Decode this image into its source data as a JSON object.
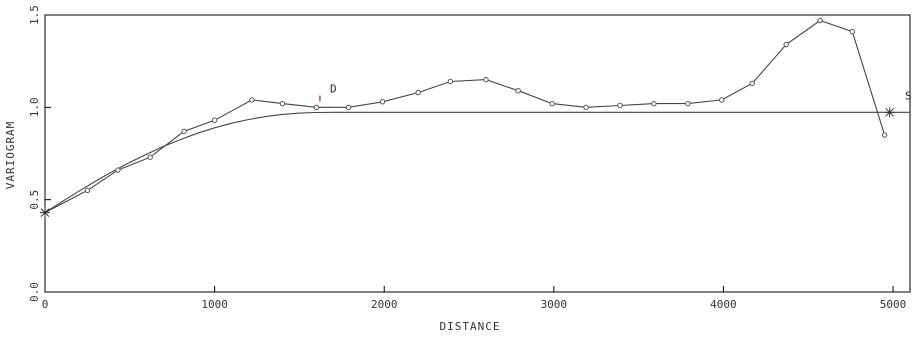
{
  "chart_data": {
    "type": "line",
    "xlabel": "DISTANCE",
    "ylabel": "VARIOGRAM",
    "xlim": [
      0,
      5100
    ],
    "ylim": [
      0,
      1.5
    ],
    "xticks": [
      "0",
      "1000",
      "2000",
      "3000",
      "4000",
      "5000"
    ],
    "xtick_values": [
      0,
      1000,
      2000,
      3000,
      4000,
      5000
    ],
    "yticks": [
      "0.0",
      "0.5",
      "1.0",
      "1.5"
    ],
    "ytick_values": [
      0.0,
      0.5,
      1.0,
      1.5
    ],
    "grid": false,
    "series": [
      {
        "kind": "experimental",
        "marker": "circle",
        "x": [
          0,
          250,
          430,
          620,
          820,
          1000,
          1220,
          1400,
          1600,
          1790,
          1990,
          2200,
          2390,
          2600,
          2790,
          2990,
          3190,
          3390,
          3590,
          3790,
          3990,
          4170,
          4370,
          4570,
          4760,
          4950
        ],
        "y": [
          0.43,
          0.55,
          0.66,
          0.73,
          0.87,
          0.93,
          1.04,
          1.02,
          1.0,
          1.0,
          1.03,
          1.08,
          1.14,
          1.15,
          1.09,
          1.02,
          1.0,
          1.01,
          1.02,
          1.02,
          1.04,
          1.13,
          1.34,
          1.47,
          1.41,
          0.85
        ]
      },
      {
        "kind": "model",
        "marker": "none",
        "x": [
          0,
          100,
          200,
          300,
          400,
          500,
          600,
          700,
          800,
          900,
          1000,
          1100,
          1200,
          1300,
          1400,
          1500,
          1600,
          1700,
          5100
        ],
        "y": [
          0.43,
          0.489,
          0.546,
          0.601,
          0.653,
          0.702,
          0.747,
          0.789,
          0.826,
          0.86,
          0.889,
          0.914,
          0.934,
          0.95,
          0.962,
          0.969,
          0.972,
          0.973,
          0.973
        ]
      }
    ],
    "annotations": [
      {
        "text": "D",
        "x": 1680,
        "y": 1.08
      },
      {
        "text": "S",
        "x": 5000,
        "y": 1.06
      }
    ],
    "colors": {
      "line": "#444444",
      "marker_stroke": "#555555",
      "accent": "#8b0000",
      "axis": "#000000"
    }
  }
}
